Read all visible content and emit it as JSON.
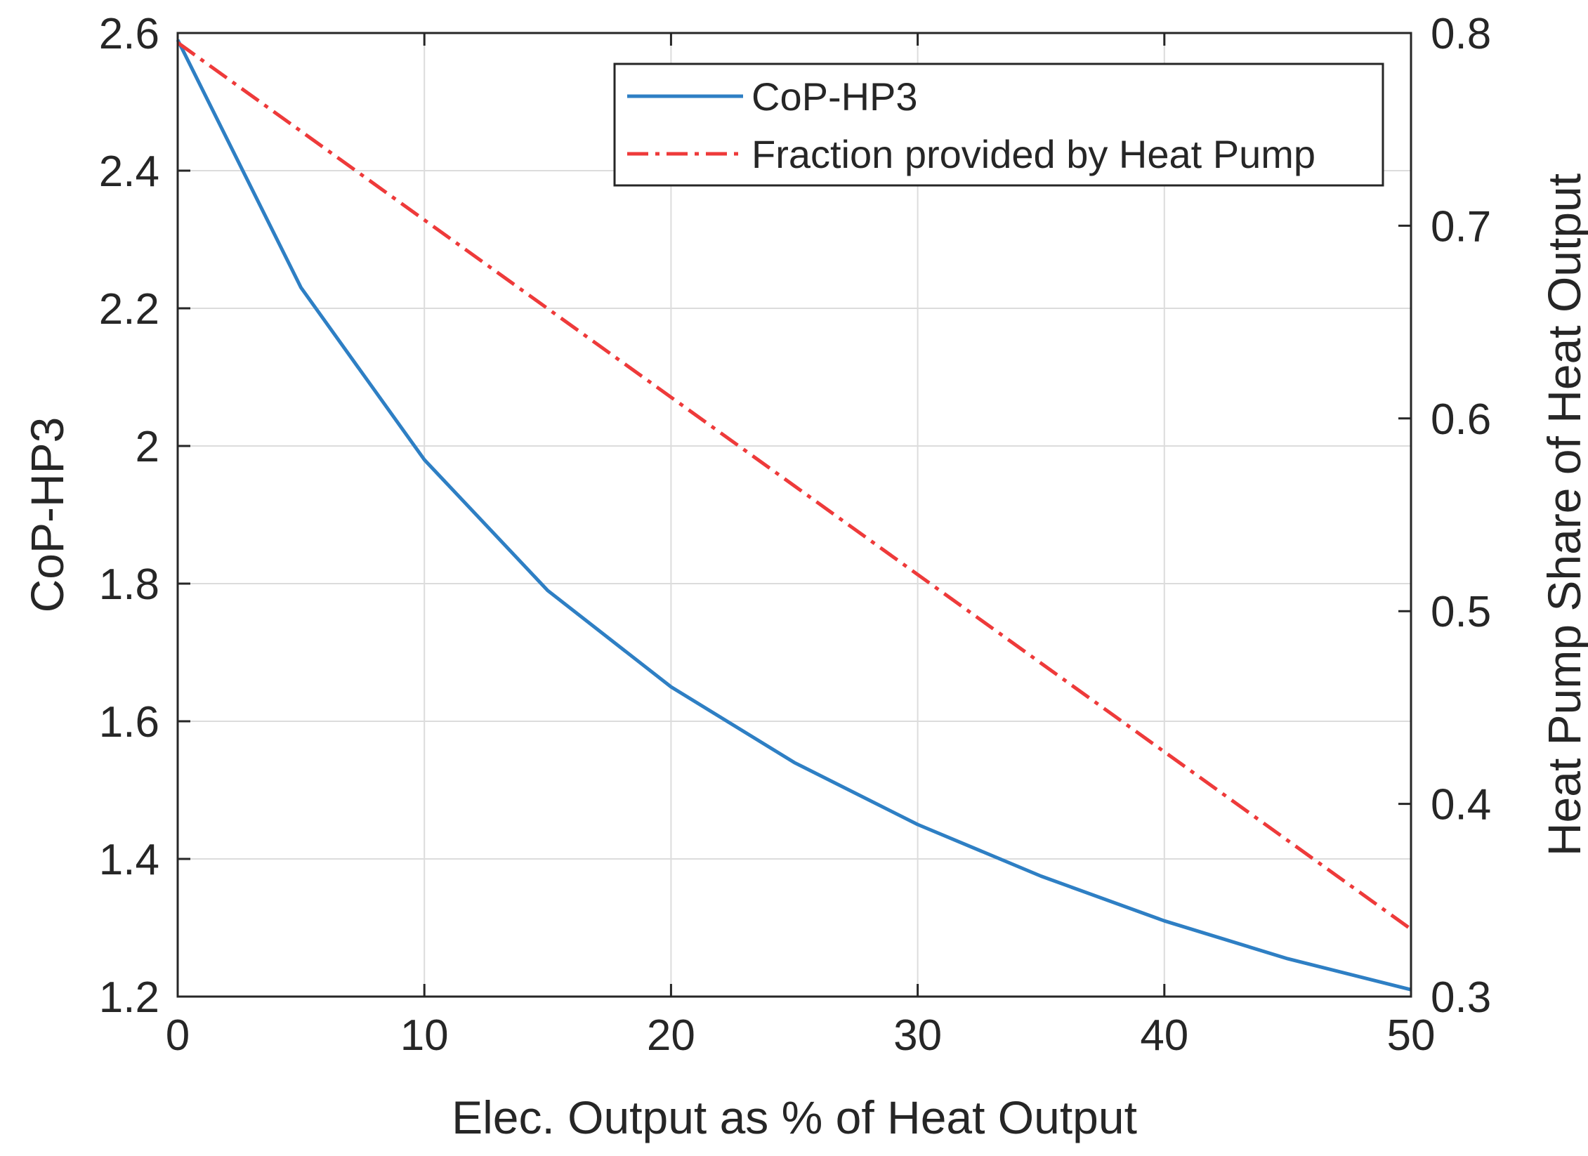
{
  "chart_data": {
    "type": "line",
    "x": [
      0,
      5,
      10,
      15,
      20,
      25,
      30,
      35,
      40,
      45,
      50
    ],
    "xlabel": "Elec. Output as % of Heat Output",
    "xlim": [
      0,
      50
    ],
    "xticks": [
      "0",
      "10",
      "20",
      "30",
      "40",
      "50"
    ],
    "xtick_values": [
      0,
      10,
      20,
      30,
      40,
      50
    ],
    "ylabel": "CoP-HP3",
    "ylim": [
      1.2,
      2.6
    ],
    "yticks": [
      "1.2",
      "1.4",
      "1.6",
      "1.8",
      "2",
      "2.2",
      "2.4",
      "2.6"
    ],
    "ytick_values": [
      1.2,
      1.4,
      1.6,
      1.8,
      2.0,
      2.2,
      2.4,
      2.6
    ],
    "y2label": "Heat Pump Share of Heat Output",
    "y2lim": [
      0.3,
      0.8
    ],
    "y2ticks": [
      "0.3",
      "0.4",
      "0.5",
      "0.6",
      "0.7",
      "0.8"
    ],
    "y2tick_values": [
      0.3,
      0.4,
      0.5,
      0.6,
      0.7,
      0.8
    ],
    "grid": true,
    "legend_position": "top-right",
    "series": [
      {
        "name": "CoP-HP3",
        "axis": "left",
        "style": "solid",
        "color": "#2e7fc4",
        "values": [
          2.59,
          2.23,
          1.98,
          1.79,
          1.65,
          1.54,
          1.45,
          1.375,
          1.31,
          1.255,
          1.21
        ]
      },
      {
        "name": "Fraction provided by Heat Pump",
        "axis": "right",
        "style": "dash-dot",
        "color": "#ee3a3a",
        "values": [
          0.795,
          0.749,
          0.703,
          0.657,
          0.611,
          0.565,
          0.519,
          0.473,
          0.427,
          0.381,
          0.335
        ]
      }
    ]
  }
}
